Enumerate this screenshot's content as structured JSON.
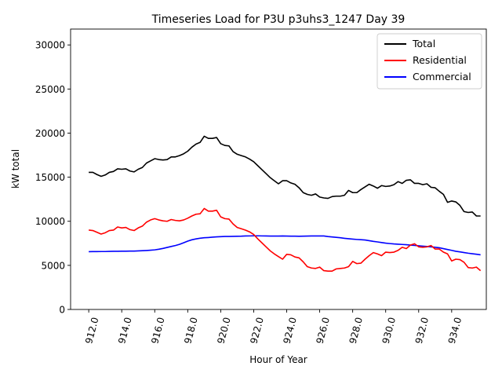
{
  "chart_data": {
    "type": "line",
    "title": "Timeseries Load for P3U p3uhs3_1247  Day 39",
    "xlabel": "Hour of Year",
    "ylabel": "kW total",
    "xlim": [
      910.9,
      936.1
    ],
    "ylim": [
      0,
      31800
    ],
    "xticks": [
      912.0,
      914.0,
      916.0,
      918.0,
      920.0,
      922.0,
      924.0,
      926.0,
      928.0,
      930.0,
      932.0,
      934.0
    ],
    "xtick_labels": [
      "912.0",
      "914.0",
      "916.0",
      "918.0",
      "920.0",
      "922.0",
      "924.0",
      "926.0",
      "928.0",
      "930.0",
      "932.0",
      "934.0"
    ],
    "yticks": [
      0,
      5000,
      10000,
      15000,
      20000,
      25000,
      30000
    ],
    "ytick_labels": [
      "0",
      "5000",
      "10000",
      "15000",
      "20000",
      "25000",
      "30000"
    ],
    "legend_position": "top-right",
    "grid": false,
    "x": [
      912.0,
      912.25,
      912.5,
      912.75,
      913.0,
      913.25,
      913.5,
      913.75,
      914.0,
      914.25,
      914.5,
      914.75,
      915.0,
      915.25,
      915.5,
      915.75,
      916.0,
      916.25,
      916.5,
      916.75,
      917.0,
      917.25,
      917.5,
      917.75,
      918.0,
      918.25,
      918.5,
      918.75,
      919.0,
      919.25,
      919.5,
      919.75,
      920.0,
      920.25,
      920.5,
      920.75,
      921.0,
      921.25,
      921.5,
      921.75,
      922.0,
      922.25,
      922.5,
      922.75,
      923.0,
      923.25,
      923.5,
      923.75,
      924.0,
      924.25,
      924.5,
      924.75,
      925.0,
      925.25,
      925.5,
      925.75,
      926.0,
      926.25,
      926.5,
      926.75,
      927.0,
      927.25,
      927.5,
      927.75,
      928.0,
      928.25,
      928.5,
      928.75,
      929.0,
      929.25,
      929.5,
      929.75,
      930.0,
      930.25,
      930.5,
      930.75,
      931.0,
      931.25,
      931.5,
      931.75,
      932.0,
      932.25,
      932.5,
      932.75,
      933.0,
      933.25,
      933.5,
      933.75,
      934.0,
      934.25,
      934.5,
      934.75,
      935.0,
      935.25,
      935.5,
      935.75
    ],
    "series": [
      {
        "name": "Total",
        "color": "#000000",
        "values": [
          15550,
          15550,
          15300,
          15100,
          15250,
          15550,
          15650,
          15950,
          15900,
          15950,
          15700,
          15600,
          15900,
          16100,
          16600,
          16850,
          17100,
          17000,
          16950,
          17000,
          17300,
          17300,
          17450,
          17650,
          17950,
          18400,
          18750,
          18950,
          19650,
          19400,
          19400,
          19500,
          18800,
          18600,
          18550,
          17900,
          17600,
          17450,
          17300,
          17050,
          16750,
          16300,
          15850,
          15400,
          14950,
          14600,
          14250,
          14600,
          14600,
          14350,
          14200,
          13800,
          13250,
          13050,
          12950,
          13100,
          12750,
          12650,
          12600,
          12800,
          12850,
          12850,
          12950,
          13500,
          13250,
          13250,
          13600,
          13900,
          14200,
          14000,
          13750,
          14050,
          13950,
          14000,
          14150,
          14500,
          14300,
          14650,
          14700,
          14300,
          14300,
          14150,
          14250,
          13850,
          13800,
          13400,
          13050,
          12150,
          12300,
          12200,
          11800,
          11100,
          11000,
          11050,
          10600,
          10600
        ]
      },
      {
        "name": "Residential",
        "color": "#ff0000",
        "values": [
          9000,
          8950,
          8750,
          8550,
          8700,
          8950,
          9000,
          9350,
          9250,
          9300,
          9050,
          8950,
          9250,
          9450,
          9900,
          10150,
          10300,
          10150,
          10050,
          10000,
          10200,
          10100,
          10050,
          10150,
          10350,
          10600,
          10800,
          10850,
          11450,
          11150,
          11150,
          11250,
          10500,
          10300,
          10250,
          9700,
          9300,
          9150,
          9000,
          8800,
          8500,
          8000,
          7550,
          7100,
          6650,
          6300,
          6000,
          5700,
          6250,
          6200,
          5950,
          5850,
          5400,
          4850,
          4700,
          4650,
          4800,
          4400,
          4350,
          4350,
          4600,
          4650,
          4700,
          4850,
          5450,
          5200,
          5250,
          5700,
          6100,
          6450,
          6300,
          6100,
          6500,
          6450,
          6500,
          6700,
          7050,
          6900,
          7300,
          7450,
          7100,
          7050,
          7100,
          7250,
          6850,
          6850,
          6500,
          6300,
          5500,
          5700,
          5650,
          5350,
          4750,
          4700,
          4800,
          4400
        ]
      },
      {
        "name": "Commercial",
        "color": "#0000ff",
        "values": [
          6550,
          6560,
          6560,
          6570,
          6570,
          6590,
          6600,
          6600,
          6610,
          6610,
          6620,
          6620,
          6640,
          6660,
          6690,
          6720,
          6760,
          6830,
          6920,
          7030,
          7140,
          7250,
          7380,
          7560,
          7750,
          7900,
          8000,
          8080,
          8130,
          8160,
          8200,
          8230,
          8260,
          8280,
          8280,
          8290,
          8300,
          8310,
          8330,
          8340,
          8350,
          8350,
          8340,
          8330,
          8320,
          8320,
          8320,
          8330,
          8320,
          8310,
          8310,
          8300,
          8310,
          8320,
          8330,
          8330,
          8340,
          8330,
          8270,
          8220,
          8180,
          8130,
          8070,
          8020,
          7980,
          7940,
          7910,
          7880,
          7800,
          7720,
          7660,
          7590,
          7520,
          7470,
          7430,
          7400,
          7370,
          7340,
          7300,
          7260,
          7220,
          7180,
          7140,
          7100,
          7050,
          7000,
          6900,
          6800,
          6700,
          6600,
          6530,
          6450,
          6380,
          6320,
          6260,
          6200
        ]
      }
    ]
  }
}
